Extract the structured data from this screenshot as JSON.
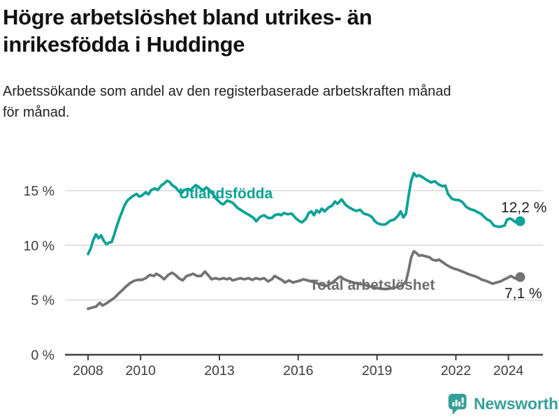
{
  "header": {
    "title_lines": [
      "Högre arbetslöshet bland utrikes- än",
      "inrikesfödda i Huddinge"
    ],
    "subtitle_lines": [
      "Arbetssökande som andel av den registerbaserade arbetskraften månad",
      "för månad."
    ]
  },
  "colors": {
    "foreign_born": "#0aa296",
    "total": "#737373",
    "total_label": "#6e6e6e",
    "grid": "#d9d9d9",
    "axis": "#3f3f3f",
    "tick_text": "#3c3c3c",
    "value_label": "#1d1d1d",
    "logo": "#369f97"
  },
  "logo": {
    "text": "Newsworthy",
    "icon": "bar-chart-speech-bubble-icon"
  },
  "chart_data": {
    "type": "line",
    "title": "Högre arbetslöshet bland utrikes- än inrikesfödda i Huddinge",
    "subtitle": "Arbetssökande som andel av den registerbaserade arbetskraften månad för månad.",
    "grid": "horizontal",
    "legend": "inline-labels",
    "x_axis": {
      "ticks": [
        2008,
        2010,
        2013,
        2016,
        2019,
        2022,
        2024
      ],
      "tick_labels": [
        "2008",
        "2010",
        "2013",
        "2016",
        "2019",
        "2022",
        "2024"
      ],
      "range": [
        2007.9,
        2025.3
      ]
    },
    "y_axis": {
      "ticks": [
        0,
        5,
        10,
        15
      ],
      "tick_labels": [
        "0 %",
        "5 %",
        "10 %",
        "15 %"
      ],
      "range": [
        0,
        17.5
      ]
    },
    "series": [
      {
        "id": "utlandsfodda",
        "name": "Utlandsfödda",
        "color": "#0aa296",
        "end_label": "12,2 %",
        "end_value": 12.2,
        "points": [
          [
            2008.0,
            9.2
          ],
          [
            2008.1,
            9.7
          ],
          [
            2008.2,
            10.5
          ],
          [
            2008.3,
            11.0
          ],
          [
            2008.4,
            10.65
          ],
          [
            2008.5,
            10.9
          ],
          [
            2008.6,
            10.4
          ],
          [
            2008.7,
            10.1
          ],
          [
            2008.8,
            10.25
          ],
          [
            2008.9,
            10.3
          ],
          [
            2009.0,
            11.0
          ],
          [
            2009.1,
            11.8
          ],
          [
            2009.2,
            12.5
          ],
          [
            2009.3,
            13.1
          ],
          [
            2009.4,
            13.7
          ],
          [
            2009.5,
            14.1
          ],
          [
            2009.6,
            14.3
          ],
          [
            2009.7,
            14.5
          ],
          [
            2009.85,
            14.7
          ],
          [
            2009.95,
            14.45
          ],
          [
            2010.05,
            14.55
          ],
          [
            2010.2,
            14.85
          ],
          [
            2010.3,
            14.65
          ],
          [
            2010.4,
            15.05
          ],
          [
            2010.55,
            15.2
          ],
          [
            2010.65,
            15.05
          ],
          [
            2010.8,
            15.5
          ],
          [
            2010.9,
            15.65
          ],
          [
            2011.0,
            15.9
          ],
          [
            2011.1,
            15.8
          ],
          [
            2011.2,
            15.5
          ],
          [
            2011.35,
            15.25
          ],
          [
            2011.45,
            14.95
          ],
          [
            2011.55,
            14.75
          ],
          [
            2011.65,
            15.05
          ],
          [
            2011.8,
            15.15
          ],
          [
            2011.9,
            15.05
          ],
          [
            2012.0,
            15.3
          ],
          [
            2012.1,
            15.5
          ],
          [
            2012.2,
            15.35
          ],
          [
            2012.3,
            15.15
          ],
          [
            2012.4,
            15.05
          ],
          [
            2012.5,
            15.3
          ],
          [
            2012.6,
            15.1
          ],
          [
            2012.75,
            14.7
          ],
          [
            2012.9,
            14.2
          ],
          [
            2013.05,
            13.85
          ],
          [
            2013.15,
            13.75
          ],
          [
            2013.3,
            14.1
          ],
          [
            2013.5,
            13.9
          ],
          [
            2013.7,
            13.4
          ],
          [
            2013.87,
            13.15
          ],
          [
            2014.0,
            12.95
          ],
          [
            2014.15,
            12.75
          ],
          [
            2014.3,
            12.5
          ],
          [
            2014.4,
            12.2
          ],
          [
            2014.55,
            12.6
          ],
          [
            2014.7,
            12.75
          ],
          [
            2014.85,
            12.5
          ],
          [
            2015.0,
            12.5
          ],
          [
            2015.1,
            12.75
          ],
          [
            2015.25,
            12.85
          ],
          [
            2015.35,
            12.75
          ],
          [
            2015.45,
            12.95
          ],
          [
            2015.6,
            12.85
          ],
          [
            2015.75,
            12.9
          ],
          [
            2015.9,
            12.5
          ],
          [
            2016.05,
            12.2
          ],
          [
            2016.15,
            12.1
          ],
          [
            2016.3,
            12.45
          ],
          [
            2016.4,
            12.95
          ],
          [
            2016.5,
            13.1
          ],
          [
            2016.6,
            12.75
          ],
          [
            2016.7,
            13.2
          ],
          [
            2016.8,
            13.0
          ],
          [
            2016.9,
            13.35
          ],
          [
            2017.0,
            13.1
          ],
          [
            2017.15,
            13.45
          ],
          [
            2017.3,
            13.65
          ],
          [
            2017.4,
            14.0
          ],
          [
            2017.5,
            13.8
          ],
          [
            2017.65,
            14.2
          ],
          [
            2017.8,
            13.7
          ],
          [
            2017.95,
            13.45
          ],
          [
            2018.1,
            13.25
          ],
          [
            2018.2,
            13.15
          ],
          [
            2018.35,
            13.25
          ],
          [
            2018.5,
            12.9
          ],
          [
            2018.65,
            12.8
          ],
          [
            2018.8,
            12.6
          ],
          [
            2018.9,
            12.25
          ],
          [
            2019.0,
            12.05
          ],
          [
            2019.15,
            11.9
          ],
          [
            2019.3,
            11.9
          ],
          [
            2019.4,
            12.05
          ],
          [
            2019.5,
            12.25
          ],
          [
            2019.65,
            12.35
          ],
          [
            2019.8,
            12.7
          ],
          [
            2019.9,
            13.1
          ],
          [
            2020.0,
            12.55
          ],
          [
            2020.1,
            12.9
          ],
          [
            2020.2,
            14.5
          ],
          [
            2020.3,
            15.9
          ],
          [
            2020.4,
            16.6
          ],
          [
            2020.5,
            16.3
          ],
          [
            2020.6,
            16.4
          ],
          [
            2020.75,
            16.2
          ],
          [
            2020.9,
            15.95
          ],
          [
            2021.05,
            15.75
          ],
          [
            2021.2,
            15.85
          ],
          [
            2021.35,
            15.55
          ],
          [
            2021.5,
            15.4
          ],
          [
            2021.6,
            15.45
          ],
          [
            2021.7,
            14.7
          ],
          [
            2021.85,
            14.25
          ],
          [
            2022.0,
            14.15
          ],
          [
            2022.1,
            14.15
          ],
          [
            2022.25,
            13.95
          ],
          [
            2022.4,
            13.5
          ],
          [
            2022.55,
            13.3
          ],
          [
            2022.7,
            13.2
          ],
          [
            2022.85,
            13.0
          ],
          [
            2022.95,
            12.9
          ],
          [
            2023.1,
            12.55
          ],
          [
            2023.2,
            12.35
          ],
          [
            2023.3,
            12.25
          ],
          [
            2023.45,
            11.8
          ],
          [
            2023.6,
            11.7
          ],
          [
            2023.7,
            11.7
          ],
          [
            2023.85,
            11.8
          ],
          [
            2023.95,
            12.35
          ],
          [
            2024.05,
            12.45
          ],
          [
            2024.15,
            12.35
          ],
          [
            2024.25,
            12.15
          ],
          [
            2024.35,
            12.05
          ],
          [
            2024.45,
            12.2
          ]
        ]
      },
      {
        "id": "total",
        "name": "Total arbetslöshet",
        "color": "#737373",
        "end_label": "7,1 %",
        "end_value": 7.1,
        "points": [
          [
            2008.0,
            4.2
          ],
          [
            2008.15,
            4.3
          ],
          [
            2008.3,
            4.4
          ],
          [
            2008.45,
            4.75
          ],
          [
            2008.55,
            4.5
          ],
          [
            2008.7,
            4.7
          ],
          [
            2008.85,
            4.95
          ],
          [
            2009.0,
            5.2
          ],
          [
            2009.15,
            5.55
          ],
          [
            2009.3,
            5.9
          ],
          [
            2009.45,
            6.25
          ],
          [
            2009.6,
            6.55
          ],
          [
            2009.75,
            6.75
          ],
          [
            2009.9,
            6.85
          ],
          [
            2010.05,
            6.85
          ],
          [
            2010.2,
            7.0
          ],
          [
            2010.35,
            7.3
          ],
          [
            2010.5,
            7.2
          ],
          [
            2010.6,
            7.4
          ],
          [
            2010.75,
            7.2
          ],
          [
            2010.9,
            6.9
          ],
          [
            2011.05,
            7.3
          ],
          [
            2011.2,
            7.5
          ],
          [
            2011.35,
            7.25
          ],
          [
            2011.45,
            7.0
          ],
          [
            2011.6,
            6.8
          ],
          [
            2011.75,
            7.2
          ],
          [
            2011.9,
            7.3
          ],
          [
            2012.0,
            7.4
          ],
          [
            2012.15,
            7.2
          ],
          [
            2012.3,
            7.2
          ],
          [
            2012.45,
            7.6
          ],
          [
            2012.6,
            7.2
          ],
          [
            2012.7,
            6.9
          ],
          [
            2012.85,
            7.0
          ],
          [
            2013.0,
            6.9
          ],
          [
            2013.15,
            7.0
          ],
          [
            2013.3,
            6.9
          ],
          [
            2013.4,
            7.0
          ],
          [
            2013.5,
            6.8
          ],
          [
            2013.65,
            6.9
          ],
          [
            2013.8,
            7.0
          ],
          [
            2013.95,
            6.9
          ],
          [
            2014.1,
            7.0
          ],
          [
            2014.25,
            6.85
          ],
          [
            2014.4,
            7.0
          ],
          [
            2014.55,
            6.9
          ],
          [
            2014.7,
            7.0
          ],
          [
            2014.85,
            6.7
          ],
          [
            2015.0,
            6.9
          ],
          [
            2015.1,
            7.2
          ],
          [
            2015.25,
            7.0
          ],
          [
            2015.4,
            6.8
          ],
          [
            2015.5,
            6.6
          ],
          [
            2015.65,
            6.8
          ],
          [
            2015.8,
            6.6
          ],
          [
            2015.95,
            6.7
          ],
          [
            2016.1,
            6.8
          ],
          [
            2016.2,
            6.9
          ],
          [
            2016.35,
            6.8
          ],
          [
            2016.5,
            6.7
          ],
          [
            2016.65,
            6.6
          ],
          [
            2016.8,
            6.45
          ],
          [
            2016.95,
            6.35
          ],
          [
            2017.1,
            6.3
          ],
          [
            2017.3,
            6.6
          ],
          [
            2017.5,
            7.0
          ],
          [
            2017.6,
            7.15
          ],
          [
            2017.75,
            6.9
          ],
          [
            2017.9,
            6.75
          ],
          [
            2018.1,
            6.6
          ],
          [
            2018.3,
            6.5
          ],
          [
            2018.5,
            6.4
          ],
          [
            2018.7,
            6.25
          ],
          [
            2018.9,
            6.15
          ],
          [
            2019.1,
            6.05
          ],
          [
            2019.3,
            6.0
          ],
          [
            2019.5,
            6.05
          ],
          [
            2019.7,
            6.15
          ],
          [
            2019.9,
            6.3
          ],
          [
            2020.0,
            6.45
          ],
          [
            2020.1,
            6.7
          ],
          [
            2020.2,
            7.7
          ],
          [
            2020.3,
            8.9
          ],
          [
            2020.4,
            9.45
          ],
          [
            2020.5,
            9.3
          ],
          [
            2020.6,
            9.05
          ],
          [
            2020.7,
            9.1
          ],
          [
            2020.85,
            9.0
          ],
          [
            2021.0,
            8.9
          ],
          [
            2021.1,
            8.7
          ],
          [
            2021.25,
            8.6
          ],
          [
            2021.35,
            8.7
          ],
          [
            2021.5,
            8.45
          ],
          [
            2021.65,
            8.2
          ],
          [
            2021.8,
            8.0
          ],
          [
            2021.95,
            7.85
          ],
          [
            2022.1,
            7.75
          ],
          [
            2022.25,
            7.6
          ],
          [
            2022.4,
            7.45
          ],
          [
            2022.55,
            7.3
          ],
          [
            2022.7,
            7.2
          ],
          [
            2022.85,
            7.05
          ],
          [
            2023.0,
            6.85
          ],
          [
            2023.15,
            6.75
          ],
          [
            2023.3,
            6.6
          ],
          [
            2023.4,
            6.5
          ],
          [
            2023.55,
            6.6
          ],
          [
            2023.7,
            6.7
          ],
          [
            2023.85,
            6.9
          ],
          [
            2023.95,
            7.0
          ],
          [
            2024.1,
            7.2
          ],
          [
            2024.2,
            7.05
          ],
          [
            2024.3,
            6.95
          ],
          [
            2024.45,
            7.1
          ]
        ]
      }
    ]
  }
}
